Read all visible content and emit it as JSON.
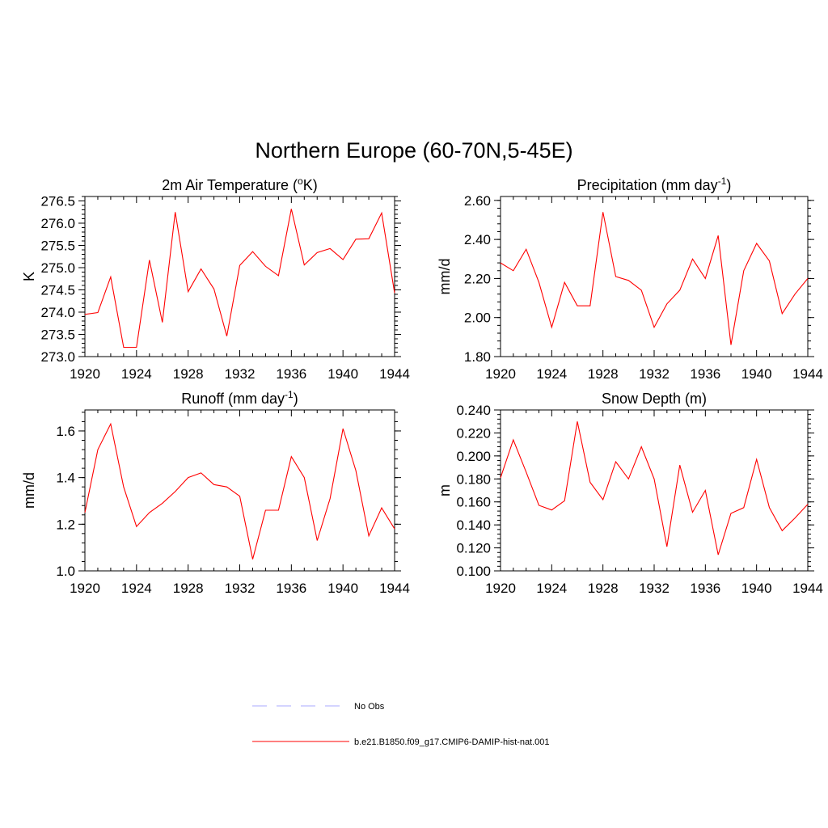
{
  "figure": {
    "title": "Northern Europe (60-70N,5-45E)"
  },
  "legend": {
    "entries": [
      {
        "label": "No Obs",
        "color": "#aaaaff",
        "dash": "dashed"
      },
      {
        "label": "b.e21.B1850.f09_g17.CMIP6-DAMIP-hist-nat.001",
        "color": "#ff0000",
        "dash": "solid"
      }
    ]
  },
  "chart_data": [
    {
      "type": "line",
      "title": "2m Air Temperature (",
      "title_sup": "o",
      "title_after": "K)",
      "xlabel": "",
      "ylabel": "K",
      "x": [
        1920,
        1921,
        1922,
        1923,
        1924,
        1925,
        1926,
        1927,
        1928,
        1929,
        1930,
        1931,
        1932,
        1933,
        1934,
        1935,
        1936,
        1937,
        1938,
        1939,
        1940,
        1941,
        1942,
        1943,
        1944
      ],
      "xlim": [
        1920,
        1944
      ],
      "xticks": [
        "1920",
        "1924",
        "1928",
        "1932",
        "1936",
        "1940",
        "1944"
      ],
      "ylim": [
        273.0,
        276.6
      ],
      "yticks": [
        "273.0",
        "273.5",
        "274.0",
        "274.5",
        "275.0",
        "275.5",
        "276.0",
        "276.5"
      ],
      "grid": false,
      "series": [
        {
          "color": "#ff0000",
          "values": [
            273.95,
            273.99,
            274.79,
            273.21,
            273.21,
            275.17,
            273.77,
            276.25,
            274.46,
            274.97,
            274.52,
            273.46,
            275.05,
            275.36,
            275.03,
            274.82,
            276.32,
            275.06,
            275.34,
            275.43,
            275.18,
            275.64,
            275.65,
            276.23,
            274.43
          ]
        }
      ]
    },
    {
      "type": "line",
      "title": "Precipitation (mm day",
      "title_sup": "-1",
      "title_after": ")",
      "xlabel": "",
      "ylabel": "mm/d",
      "x": [
        1920,
        1921,
        1922,
        1923,
        1924,
        1925,
        1926,
        1927,
        1928,
        1929,
        1930,
        1931,
        1932,
        1933,
        1934,
        1935,
        1936,
        1937,
        1938,
        1939,
        1940,
        1941,
        1942,
        1943,
        1944
      ],
      "xlim": [
        1920,
        1944
      ],
      "xticks": [
        "1920",
        "1924",
        "1928",
        "1932",
        "1936",
        "1940",
        "1944"
      ],
      "ylim": [
        1.8,
        2.62
      ],
      "yticks": [
        "1.80",
        "2.00",
        "2.20",
        "2.40",
        "2.60"
      ],
      "grid": false,
      "series": [
        {
          "color": "#ff0000",
          "values": [
            2.28,
            2.24,
            2.35,
            2.18,
            1.95,
            2.18,
            2.06,
            2.06,
            2.54,
            2.21,
            2.19,
            2.14,
            1.95,
            2.07,
            2.14,
            2.3,
            2.2,
            2.42,
            1.86,
            2.24,
            2.38,
            2.29,
            2.02,
            2.12,
            2.2
          ]
        }
      ]
    },
    {
      "type": "line",
      "title": "Runoff (mm day",
      "title_sup": "-1",
      "title_after": ")",
      "xlabel": "",
      "ylabel": "mm/d",
      "x": [
        1920,
        1921,
        1922,
        1923,
        1924,
        1925,
        1926,
        1927,
        1928,
        1929,
        1930,
        1931,
        1932,
        1933,
        1934,
        1935,
        1936,
        1937,
        1938,
        1939,
        1940,
        1941,
        1942,
        1943,
        1944
      ],
      "xlim": [
        1920,
        1944
      ],
      "xticks": [
        "1920",
        "1924",
        "1928",
        "1932",
        "1936",
        "1940",
        "1944"
      ],
      "ylim": [
        1.0,
        1.69
      ],
      "yticks": [
        "1.0",
        "1.2",
        "1.4",
        "1.6"
      ],
      "grid": false,
      "series": [
        {
          "color": "#ff0000",
          "values": [
            1.25,
            1.52,
            1.63,
            1.36,
            1.19,
            1.25,
            1.29,
            1.34,
            1.4,
            1.42,
            1.37,
            1.36,
            1.32,
            1.05,
            1.26,
            1.26,
            1.49,
            1.4,
            1.13,
            1.31,
            1.61,
            1.43,
            1.15,
            1.27,
            1.18
          ]
        }
      ]
    },
    {
      "type": "line",
      "title": "Snow Depth (m)",
      "title_sup": "",
      "title_after": "",
      "xlabel": "",
      "ylabel": "m",
      "x": [
        1920,
        1921,
        1922,
        1923,
        1924,
        1925,
        1926,
        1927,
        1928,
        1929,
        1930,
        1931,
        1932,
        1933,
        1934,
        1935,
        1936,
        1937,
        1938,
        1939,
        1940,
        1941,
        1942,
        1943,
        1944
      ],
      "xlim": [
        1920,
        1944
      ],
      "xticks": [
        "1920",
        "1924",
        "1928",
        "1932",
        "1936",
        "1940",
        "1944"
      ],
      "ylim": [
        0.1,
        0.24
      ],
      "yticks": [
        "0.100",
        "0.120",
        "0.140",
        "0.160",
        "0.180",
        "0.200",
        "0.220",
        "0.240"
      ],
      "grid": false,
      "series": [
        {
          "color": "#ff0000",
          "values": [
            0.181,
            0.214,
            0.186,
            0.157,
            0.153,
            0.161,
            0.23,
            0.177,
            0.162,
            0.195,
            0.18,
            0.208,
            0.18,
            0.121,
            0.192,
            0.151,
            0.17,
            0.114,
            0.15,
            0.155,
            0.197,
            0.155,
            0.135,
            0.146,
            0.158
          ]
        }
      ]
    }
  ]
}
